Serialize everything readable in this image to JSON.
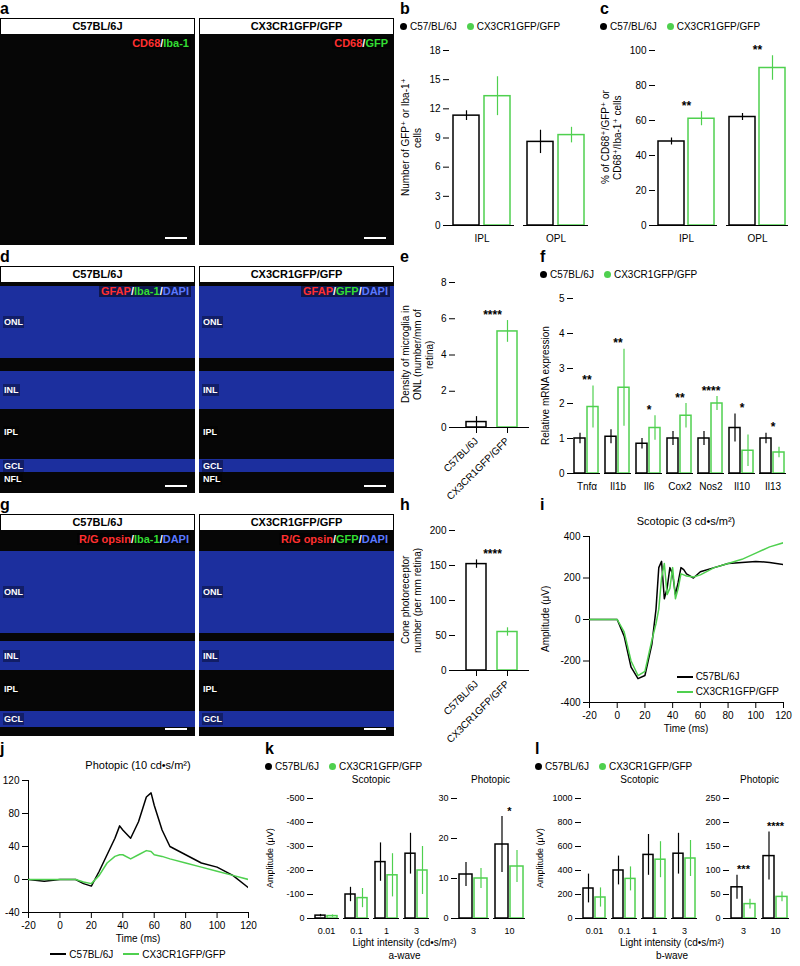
{
  "chart_data": [
    {
      "type": "bar",
      "panel": "b",
      "ylabel": "Number of GFP⁺ or Iba-1⁺ cells",
      "legend": "top",
      "categories": [
        "IPL",
        "OPL"
      ],
      "series": [
        {
          "name": "C57/BL/6J",
          "color": "#000000",
          "values": [
            11.3,
            8.6
          ],
          "errors": [
            0.5,
            1.2
          ]
        },
        {
          "name": "CX3CR1GFP/GFP",
          "color": "#4fd04f",
          "values": [
            13.3,
            9.3
          ],
          "errors": [
            2.0,
            0.8
          ]
        }
      ],
      "ylim": [
        0,
        18
      ],
      "yticks": [
        0,
        3,
        6,
        9,
        12,
        15,
        18
      ]
    },
    {
      "type": "bar",
      "panel": "c",
      "ylabel": "% of CD68⁺/GFP⁺ or CD68⁺/Iba-1⁺ cells",
      "legend": "top",
      "categories": [
        "IPL",
        "OPL"
      ],
      "series": [
        {
          "name": "C57/BL/6J",
          "color": "#000000",
          "values": [
            48,
            62
          ],
          "errors": [
            2,
            2
          ]
        },
        {
          "name": "CX3CR1GFP/GFP",
          "color": "#4fd04f",
          "values": [
            61,
            90
          ],
          "errors": [
            4,
            7
          ]
        }
      ],
      "significance": [
        "**",
        "**"
      ],
      "ylim": [
        0,
        100
      ],
      "yticks": [
        0,
        20,
        40,
        60,
        80,
        100
      ]
    },
    {
      "type": "bar",
      "panel": "e",
      "ylabel": "Density of microglia in ONL (number/mm of retina)",
      "categories": [
        "C57BL/6J",
        "CX3CR1GFP/GFP"
      ],
      "values": [
        0.3,
        5.3
      ],
      "errors": [
        0.3,
        0.6
      ],
      "colors": [
        "#000000",
        "#4fd04f"
      ],
      "significance": "****",
      "ylim": [
        0,
        8
      ],
      "yticks": [
        0,
        2,
        4,
        6,
        8
      ]
    },
    {
      "type": "bar",
      "panel": "f",
      "ylabel": "Relative mRNA expression",
      "legend": "top",
      "categories": [
        "Tnfα",
        "Il1b",
        "Il6",
        "Cox2",
        "Nos2",
        "Il10",
        "Il13"
      ],
      "series": [
        {
          "name": "C57BL/6J",
          "color": "#000000",
          "values": [
            1.0,
            1.05,
            0.85,
            1.0,
            1.0,
            1.3,
            1.0
          ],
          "errors": [
            0.15,
            0.2,
            0.15,
            0.2,
            0.2,
            0.4,
            0.15
          ]
        },
        {
          "name": "CX3CR1GFP/GFP",
          "color": "#4fd04f",
          "values": [
            1.9,
            2.45,
            1.3,
            1.65,
            2.0,
            0.65,
            0.6
          ],
          "errors": [
            0.6,
            1.1,
            0.35,
            0.35,
            0.2,
            0.45,
            0.15
          ]
        }
      ],
      "significance": [
        "**",
        "**",
        "*",
        "**",
        "****",
        "*",
        "*"
      ],
      "ylim": [
        0,
        5
      ],
      "yticks": [
        0,
        1,
        2,
        3,
        4,
        5
      ]
    },
    {
      "type": "bar",
      "panel": "h",
      "ylabel": "Cone photoreceptor number (per mm retina)",
      "categories": [
        "C57BL/6J",
        "CX3CR1GFP/GFP"
      ],
      "values": [
        152,
        55
      ],
      "errors": [
        6,
        6
      ],
      "colors": [
        "#000000",
        "#4fd04f"
      ],
      "significance": "****",
      "ylim": [
        0,
        200
      ],
      "yticks": [
        0,
        50,
        100,
        150,
        200
      ]
    },
    {
      "type": "line",
      "panel": "i",
      "title": "Scotopic (3 cd•s/m²)",
      "xlabel": "Time (ms)",
      "ylabel": "Amplitude (μV)",
      "legend": "bottom-right",
      "x": [
        -20,
        -10,
        0,
        5,
        10,
        15,
        20,
        25,
        28,
        30,
        32,
        34,
        36,
        38,
        40,
        42,
        44,
        46,
        48,
        50,
        55,
        60,
        70,
        80,
        90,
        100,
        110,
        120
      ],
      "series": [
        {
          "name": "C57BL/6J",
          "color": "#000000",
          "values": [
            0,
            0,
            0,
            -80,
            -230,
            -285,
            -270,
            -120,
            50,
            250,
            280,
            100,
            150,
            250,
            220,
            120,
            180,
            250,
            240,
            220,
            200,
            230,
            250,
            270,
            275,
            280,
            275,
            265
          ]
        },
        {
          "name": "CX3CR1GFP/GFP",
          "color": "#4fd04f",
          "values": [
            0,
            0,
            0,
            -60,
            -200,
            -270,
            -250,
            -100,
            -20,
            50,
            200,
            270,
            120,
            150,
            250,
            100,
            150,
            220,
            215,
            210,
            205,
            215,
            250,
            270,
            290,
            320,
            350,
            370
          ]
        }
      ],
      "xlim": [
        -20,
        120
      ],
      "xticks": [
        -20,
        0,
        20,
        40,
        60,
        80,
        100,
        120
      ],
      "ylim": [
        -400,
        400
      ],
      "yticks": [
        -400,
        -200,
        0,
        200,
        400
      ]
    },
    {
      "type": "line",
      "panel": "j",
      "title": "Photopic (10 cd•s/m²)",
      "xlabel": "Time (ms)",
      "legend": "bottom",
      "x": [
        -20,
        -10,
        0,
        10,
        15,
        20,
        25,
        30,
        35,
        38,
        40,
        45,
        50,
        55,
        58,
        60,
        65,
        70,
        80,
        90,
        100,
        110,
        120
      ],
      "series": [
        {
          "name": "C57BL/6J",
          "color": "#000000",
          "values": [
            0,
            -2,
            0,
            0,
            -5,
            -8,
            10,
            30,
            50,
            65,
            60,
            50,
            70,
            100,
            105,
            90,
            60,
            40,
            30,
            20,
            15,
            5,
            -10
          ]
        },
        {
          "name": "CX3CR1GFP/GFP",
          "color": "#4fd04f",
          "values": [
            0,
            0,
            0,
            0,
            -3,
            -5,
            5,
            20,
            28,
            30,
            30,
            25,
            30,
            35,
            34,
            30,
            28,
            25,
            20,
            15,
            10,
            5,
            0
          ]
        }
      ],
      "xlim": [
        -20,
        120
      ],
      "xticks": [
        -20,
        0,
        20,
        40,
        60,
        80,
        100,
        120
      ],
      "ylim": [
        -40,
        120
      ],
      "yticks": [
        -40,
        0,
        40,
        80,
        120
      ]
    },
    {
      "type": "bar",
      "panel": "k",
      "ylabel": "Amplitude (μV)",
      "xlabel": "Light intensity (cd•s/m²)",
      "caption": "a-wave",
      "legend": "top",
      "subplots": [
        {
          "title": "Scotopic",
          "categories": [
            "0.01",
            "0.1",
            "1",
            "3"
          ],
          "series": [
            {
              "name": "C57BL/6J",
              "color": "#000000",
              "values": [
                -12,
                -100,
                -235,
                -270
              ],
              "errors": [
                5,
                30,
                80,
                85
              ]
            },
            {
              "name": "CX3CR1GFP/GFP",
              "color": "#4fd04f",
              "values": [
                -10,
                -85,
                -180,
                -200
              ],
              "errors": [
                5,
                40,
                90,
                100
              ]
            }
          ],
          "ylim": [
            0,
            -500
          ],
          "yticks": [
            0,
            -100,
            -200,
            -300,
            -400,
            -500
          ]
        },
        {
          "title": "Photopic",
          "categories": [
            "3",
            "10"
          ],
          "series": [
            {
              "name": "C57BL/6J",
              "color": "#000000",
              "values": [
                11,
                18.5
              ],
              "errors": [
                3,
                7
              ]
            },
            {
              "name": "CX3CR1GFP/GFP",
              "color": "#4fd04f",
              "values": [
                10,
                13
              ],
              "errors": [
                2.5,
                4
              ]
            }
          ],
          "significance": [
            null,
            "*"
          ],
          "ylim": [
            0,
            30
          ],
          "yticks": [
            0,
            10,
            20,
            30
          ]
        }
      ]
    },
    {
      "type": "bar",
      "panel": "l",
      "ylabel": "Amplitude (μV)",
      "xlabel": "Light intensity (cd•s/m²)",
      "caption": "b-wave",
      "legend": "top",
      "subplots": [
        {
          "title": "Scotopic",
          "categories": [
            "0.01",
            "0.1",
            "1",
            "3"
          ],
          "series": [
            {
              "name": "C57BL/6J",
              "color": "#000000",
              "values": [
                250,
                400,
                530,
                540
              ],
              "errors": [
                120,
                120,
                170,
                170
              ]
            },
            {
              "name": "CX3CR1GFP/GFP",
              "color": "#4fd04f",
              "values": [
                175,
                330,
                490,
                500
              ],
              "errors": [
                80,
                100,
                150,
                150
              ]
            }
          ],
          "ylim": [
            0,
            1000
          ],
          "yticks": [
            0,
            200,
            400,
            600,
            800,
            1000
          ]
        },
        {
          "title": "Photopic",
          "categories": [
            "3",
            "10"
          ],
          "series": [
            {
              "name": "C57BL/6J",
              "color": "#000000",
              "values": [
                65,
                130
              ],
              "errors": [
                25,
                50
              ]
            },
            {
              "name": "CX3CR1GFP/GFP",
              "color": "#4fd04f",
              "values": [
                30,
                45
              ],
              "errors": [
                10,
                10
              ]
            }
          ],
          "significance": [
            "***",
            "****"
          ],
          "ylim": [
            0,
            250
          ],
          "yticks": [
            0,
            50,
            100,
            150,
            200,
            250
          ]
        }
      ]
    }
  ],
  "image_panels": [
    {
      "panel": "a",
      "layers": [],
      "views": [
        {
          "title": "C57BL/6J",
          "stain": [
            {
              "text": "CD68",
              "color": "#ff3030"
            },
            {
              "text": "/",
              "color": "#ffffff"
            },
            {
              "text": "Iba-1",
              "color": "#33dd33"
            }
          ]
        },
        {
          "title": "CX3CR1GFP/GFP",
          "stain": [
            {
              "text": "CD68",
              "color": "#ff3030"
            },
            {
              "text": "/",
              "color": "#ffffff"
            },
            {
              "text": "GFP",
              "color": "#33dd33"
            }
          ]
        }
      ]
    },
    {
      "panel": "d",
      "layers": [
        "ONL",
        "INL",
        "IPL",
        "GCL",
        "NFL"
      ],
      "views": [
        {
          "title": "C57BL/6J",
          "stain": [
            {
              "text": "GFAP",
              "color": "#ff3030"
            },
            {
              "text": "/",
              "color": "#ffffff"
            },
            {
              "text": "Iba-1",
              "color": "#33dd33"
            },
            {
              "text": "/",
              "color": "#ffffff"
            },
            {
              "text": "DAPI",
              "color": "#5a78ff"
            }
          ]
        },
        {
          "title": "CX3CR1GFP/GFP",
          "stain": [
            {
              "text": "GFAP",
              "color": "#ff3030"
            },
            {
              "text": "/",
              "color": "#ffffff"
            },
            {
              "text": "GFP",
              "color": "#33dd33"
            },
            {
              "text": "/",
              "color": "#ffffff"
            },
            {
              "text": "DAPI",
              "color": "#5a78ff"
            }
          ]
        }
      ]
    },
    {
      "panel": "g",
      "layers": [
        "ONL",
        "INL",
        "IPL",
        "GCL"
      ],
      "views": [
        {
          "title": "C57BL/6J",
          "stain": [
            {
              "text": "R/G opsin",
              "color": "#ff3030"
            },
            {
              "text": "/",
              "color": "#ffffff"
            },
            {
              "text": "Iba-1",
              "color": "#33dd33"
            },
            {
              "text": "/",
              "color": "#ffffff"
            },
            {
              "text": "DAPI",
              "color": "#5a78ff"
            }
          ]
        },
        {
          "title": "CX3CR1GFP/GFP",
          "stain": [
            {
              "text": "R/G opsin",
              "color": "#ff3030"
            },
            {
              "text": "/",
              "color": "#ffffff"
            },
            {
              "text": "GFP",
              "color": "#33dd33"
            },
            {
              "text": "/",
              "color": "#ffffff"
            },
            {
              "text": "DAPI",
              "color": "#5a78ff"
            }
          ]
        }
      ]
    }
  ]
}
